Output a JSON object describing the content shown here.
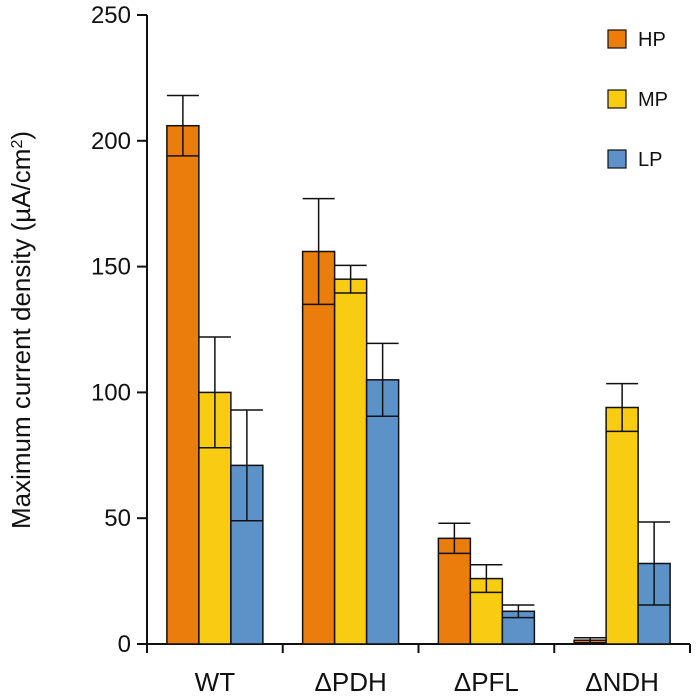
{
  "chart_data": {
    "type": "bar",
    "title": "",
    "xlabel": "",
    "ylabel": "Maximum current density (µA/cm",
    "ylabel_superscript": "2",
    "ylabel_close": ")",
    "ylim": [
      0,
      250
    ],
    "yticks": [
      0,
      50,
      100,
      150,
      200,
      250
    ],
    "categories": [
      "WT",
      "ΔPDH",
      "ΔPFL",
      "ΔNDH"
    ],
    "legend_position": "top-right",
    "series": [
      {
        "name": "HP",
        "color": "#ea7d0c",
        "values": [
          206,
          156,
          42,
          1.5
        ],
        "errors": [
          12,
          21,
          6,
          1
        ]
      },
      {
        "name": "MP",
        "color": "#f7cc12",
        "values": [
          100,
          145,
          26,
          94
        ],
        "errors": [
          22,
          5.5,
          5.5,
          9.5
        ]
      },
      {
        "name": "LP",
        "color": "#5c92c8",
        "values": [
          71,
          105,
          13,
          32
        ],
        "errors": [
          22,
          14.5,
          2.5,
          16.5
        ]
      }
    ]
  }
}
